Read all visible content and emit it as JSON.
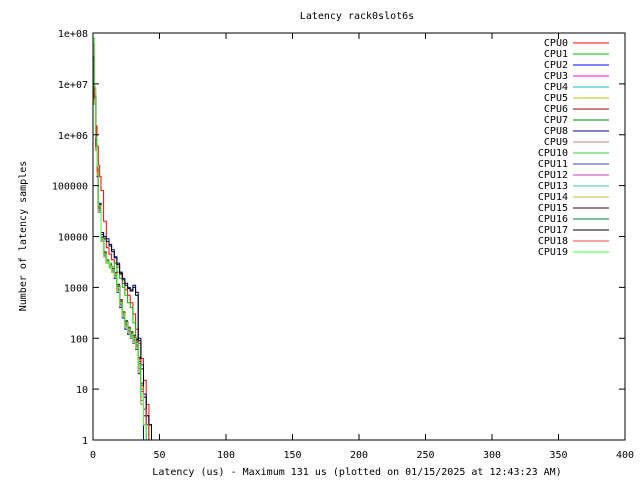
{
  "chart_data": {
    "type": "line",
    "title": "Latency rack0slot6s",
    "xlabel": "Latency (us) - Maximum 131 us (plotted on 01/15/2025 at 12:43:23 AM)",
    "ylabel": "Number of latency samples",
    "xlim": [
      0,
      400
    ],
    "ylim": [
      1,
      100000000
    ],
    "yscale": "log",
    "grid": false,
    "legend_position": "top-right",
    "x_ticks": [
      0,
      50,
      100,
      150,
      200,
      250,
      300,
      350,
      400
    ],
    "x_tick_labels": [
      "0",
      "50",
      "100",
      "150",
      "200",
      "250",
      "300",
      "350",
      "400"
    ],
    "y_ticks": [
      1,
      10,
      100,
      1000,
      10000,
      100000,
      1000000,
      10000000,
      100000000
    ],
    "y_tick_labels": [
      "1",
      "10",
      "100",
      "1000",
      "10000",
      "100000",
      "1e+06",
      "1e+07",
      "1e+08"
    ],
    "series": [
      {
        "name": "CPU0",
        "color": "#ff0000",
        "x": [
          1,
          2,
          3,
          4,
          5,
          6,
          8,
          10,
          12,
          14,
          16,
          18,
          20,
          22,
          24,
          26,
          28,
          30,
          32,
          34,
          36,
          38,
          40,
          42,
          44,
          46
        ],
        "values": [
          60000000,
          8000000,
          1500000,
          600000,
          250000,
          150000,
          80000,
          20000,
          6000,
          4500,
          3500,
          3000,
          2500,
          1800,
          1200,
          900,
          700,
          500,
          300,
          150,
          80,
          40,
          15,
          5,
          2,
          1
        ]
      },
      {
        "name": "CPU1",
        "color": "#00c000",
        "x": [
          1,
          2,
          3,
          4,
          6,
          8,
          10,
          12,
          14,
          16,
          18,
          20,
          22,
          24,
          26,
          28,
          30,
          32,
          34,
          36,
          38,
          40,
          42,
          44
        ],
        "values": [
          30000000,
          5000000,
          600000,
          200000,
          40000,
          10000,
          5000,
          3500,
          3000,
          2500,
          3000,
          2000,
          1500,
          1000,
          700,
          500,
          400,
          200,
          100,
          30,
          10,
          3,
          2,
          1
        ]
      },
      {
        "name": "CPU2",
        "color": "#0000ff",
        "x": [
          1,
          2,
          3,
          4,
          6,
          8,
          10,
          12,
          14,
          16,
          18,
          20,
          22,
          24,
          26,
          28,
          30,
          32,
          34,
          36,
          38,
          40,
          130
        ],
        "values": [
          20000000,
          4000000,
          500000,
          150000,
          30000,
          8000,
          4000,
          3000,
          2500,
          2000,
          1500,
          800,
          400,
          250,
          150,
          120,
          100,
          80,
          60,
          20,
          5,
          1,
          1
        ]
      },
      {
        "name": "CPU3",
        "color": "#ff00ff",
        "x": [
          1,
          2,
          3,
          4,
          6,
          8,
          10,
          12,
          14,
          16,
          18,
          20,
          22,
          24,
          26,
          28,
          30,
          32,
          34,
          36,
          38,
          40,
          44,
          60,
          66,
          70
        ],
        "values": [
          25000000,
          4500000,
          550000,
          180000,
          35000,
          9000,
          4500,
          3200,
          2600,
          2200,
          1800,
          1000,
          500,
          300,
          200,
          150,
          120,
          100,
          80,
          30,
          8,
          2,
          1,
          1,
          1,
          1
        ]
      },
      {
        "name": "CPU4",
        "color": "#00c0c0",
        "x": [
          1,
          2,
          3,
          4,
          6,
          8,
          10,
          12,
          14,
          16,
          18,
          20,
          22,
          24,
          26,
          28,
          30,
          32,
          34,
          36,
          38,
          40,
          50,
          58
        ],
        "values": [
          22000000,
          4200000,
          520000,
          170000,
          32000,
          8500,
          4200,
          3100,
          2500,
          2100,
          1700,
          900,
          450,
          280,
          180,
          140,
          110,
          90,
          70,
          25,
          6,
          2,
          1,
          1
        ]
      },
      {
        "name": "CPU5",
        "color": "#c0c000",
        "x": [
          1,
          2,
          3,
          4,
          6,
          8,
          10,
          12,
          14,
          16,
          18,
          20,
          22,
          24,
          26,
          28,
          30,
          32,
          34,
          36,
          38,
          40,
          48,
          56
        ],
        "values": [
          21000000,
          4100000,
          510000,
          160000,
          31000,
          8200,
          4100,
          3000,
          2400,
          2000,
          1600,
          850,
          430,
          270,
          170,
          130,
          105,
          85,
          65,
          22,
          5,
          2,
          1,
          1
        ]
      },
      {
        "name": "CPU6",
        "color": "#a00000",
        "x": [
          1,
          2,
          3,
          4,
          6,
          8,
          10,
          12,
          14,
          16,
          18,
          20,
          22,
          24,
          26,
          28,
          30,
          32,
          34,
          36,
          38,
          40,
          42,
          44,
          46
        ],
        "values": [
          28000000,
          5200000,
          580000,
          190000,
          38000,
          9500,
          4800,
          3300,
          2700,
          2300,
          1900,
          1100,
          550,
          320,
          210,
          160,
          130,
          110,
          90,
          40,
          12,
          4,
          2,
          1,
          1
        ]
      },
      {
        "name": "CPU7",
        "color": "#008000",
        "x": [
          1,
          2,
          3,
          4,
          6,
          8,
          10,
          12,
          14,
          16,
          18,
          20,
          22,
          24,
          26,
          28,
          30,
          32,
          34,
          36,
          38,
          40,
          42,
          44
        ],
        "values": [
          27000000,
          5100000,
          570000,
          185000,
          37000,
          9300,
          4700,
          3250,
          2650,
          2250,
          1850,
          1050,
          520,
          310,
          200,
          155,
          125,
          105,
          85,
          35,
          10,
          3,
          2,
          1
        ]
      },
      {
        "name": "CPU8",
        "color": "#000080",
        "x": [
          1,
          2,
          3,
          4,
          6,
          8,
          10,
          12,
          14,
          16,
          18,
          20,
          22,
          24,
          26,
          28,
          30,
          32,
          34,
          36,
          38,
          40,
          42,
          44,
          46
        ],
        "values": [
          35000000,
          6000000,
          700000,
          220000,
          45000,
          12000,
          10000,
          9000,
          7000,
          5500,
          4000,
          3000,
          2000,
          1500,
          1200,
          1000,
          900,
          1100,
          800,
          100,
          30,
          8,
          3,
          2,
          1
        ]
      },
      {
        "name": "CPU9",
        "color": "#c08080",
        "x": [
          1,
          2,
          3,
          4,
          6,
          8,
          10,
          12,
          14,
          16,
          18,
          20,
          22,
          24,
          26,
          28,
          30,
          32,
          34,
          36,
          38,
          40,
          42
        ],
        "values": [
          24000000,
          4600000,
          540000,
          175000,
          34000,
          8800,
          4400,
          3150,
          2550,
          2150,
          1750,
          950,
          480,
          290,
          190,
          145,
          115,
          95,
          75,
          28,
          7,
          2,
          1
        ]
      },
      {
        "name": "CPU10",
        "color": "#40c040",
        "x": [
          1,
          2,
          3,
          4,
          6,
          8,
          10,
          12,
          14,
          16,
          18,
          20,
          22,
          24,
          26,
          28,
          30,
          32,
          34,
          36,
          38,
          40,
          42
        ],
        "values": [
          23000000,
          4400000,
          530000,
          172000,
          33000,
          8600,
          4300,
          3120,
          2520,
          2120,
          1720,
          920,
          460,
          285,
          185,
          142,
          112,
          92,
          72,
          26,
          6,
          2,
          1
        ]
      },
      {
        "name": "CPU11",
        "color": "#4040c0",
        "x": [
          1,
          2,
          3,
          4,
          6,
          8,
          10,
          12,
          14,
          16,
          18,
          20,
          22,
          24,
          26,
          28,
          30,
          32,
          34,
          36,
          38,
          40,
          42
        ],
        "values": [
          26000000,
          4800000,
          560000,
          182000,
          36000,
          9100,
          4600,
          3220,
          2620,
          2220,
          1820,
          1020,
          510,
          305,
          195,
          152,
          122,
          102,
          82,
          32,
          9,
          3,
          1
        ]
      },
      {
        "name": "CPU12",
        "color": "#c040c0",
        "x": [
          1,
          2,
          3,
          4,
          6,
          8,
          10,
          12,
          14,
          16,
          18,
          20,
          22,
          24,
          26,
          28,
          30,
          32,
          34,
          36,
          38,
          40,
          44,
          52
        ],
        "values": [
          22500000,
          4300000,
          525000,
          171000,
          32500,
          8550,
          4250,
          3110,
          2510,
          2110,
          1710,
          910,
          455,
          282,
          182,
          141,
          111,
          91,
          71,
          25,
          6,
          2,
          1,
          1
        ]
      },
      {
        "name": "CPU13",
        "color": "#40c0c0",
        "x": [
          1,
          2,
          3,
          4,
          6,
          8,
          10,
          12,
          14,
          16,
          18,
          20,
          22,
          24,
          26,
          28,
          30,
          32,
          34,
          36,
          38,
          40,
          42
        ],
        "values": [
          21500000,
          4150000,
          515000,
          165000,
          31500,
          8300,
          4150,
          3050,
          2450,
          2050,
          1650,
          870,
          440,
          275,
          175,
          135,
          108,
          88,
          68,
          23,
          5,
          2,
          1
        ]
      },
      {
        "name": "CPU14",
        "color": "#c0c040",
        "x": [
          1,
          2,
          3,
          4,
          6,
          8,
          10,
          12,
          14,
          16,
          18,
          20,
          22,
          24,
          26,
          28,
          30,
          32,
          34,
          36,
          38,
          40,
          42
        ],
        "values": [
          20500000,
          4050000,
          505000,
          158000,
          30500,
          8100,
          4050,
          2980,
          2380,
          1980,
          1580,
          830,
          420,
          265,
          165,
          128,
          102,
          82,
          62,
          21,
          5,
          2,
          1
        ]
      },
      {
        "name": "CPU15",
        "color": "#400000",
        "x": [
          1,
          2,
          3,
          4,
          6,
          8,
          10,
          12,
          14,
          16,
          18,
          20,
          22,
          24,
          26,
          28,
          30,
          32,
          34,
          36,
          38,
          40,
          42,
          44
        ],
        "values": [
          29000000,
          5300000,
          590000,
          195000,
          39000,
          9700,
          4900,
          3350,
          2750,
          2350,
          1950,
          1150,
          570,
          330,
          220,
          165,
          135,
          115,
          95,
          42,
          13,
          4,
          2,
          1
        ]
      },
      {
        "name": "CPU16",
        "color": "#008040",
        "x": [
          1,
          2,
          3,
          4,
          6,
          8,
          10,
          12,
          14,
          16,
          18,
          20,
          22,
          24,
          26,
          28,
          30,
          32,
          34,
          36,
          38,
          40,
          42,
          44
        ],
        "values": [
          28500000,
          5250000,
          585000,
          192000,
          38500,
          9600,
          4850,
          3320,
          2720,
          2320,
          1920,
          1120,
          560,
          325,
          215,
          162,
          132,
          112,
          92,
          40,
          12,
          4,
          2,
          1
        ]
      },
      {
        "name": "CPU17",
        "color": "#000000",
        "x": [
          1,
          2,
          3,
          4,
          6,
          8,
          10,
          12,
          14,
          16,
          18,
          20,
          22,
          24,
          26,
          28,
          30,
          32,
          34,
          36,
          38,
          40,
          42,
          44,
          46
        ],
        "values": [
          32000000,
          5600000,
          650000,
          210000,
          42000,
          11000,
          9000,
          8000,
          6500,
          5000,
          3800,
          2800,
          1900,
          1400,
          1100,
          950,
          850,
          1000,
          700,
          90,
          25,
          7,
          3,
          2,
          1
        ]
      },
      {
        "name": "CPU18",
        "color": "#ff4040",
        "x": [
          1,
          2,
          3,
          4,
          6,
          8,
          10,
          12,
          14,
          16,
          18,
          20,
          22,
          24,
          26,
          28,
          30,
          32,
          34,
          36,
          38,
          40,
          42,
          44
        ],
        "values": [
          27500000,
          5150000,
          575000,
          188000,
          37500,
          9400,
          4750,
          3280,
          2680,
          2280,
          1880,
          1080,
          540,
          315,
          205,
          158,
          128,
          108,
          88,
          38,
          11,
          4,
          2,
          1
        ]
      },
      {
        "name": "CPU19",
        "color": "#40ff40",
        "x": [
          1,
          2,
          3,
          4,
          6,
          8,
          10,
          12,
          14,
          16,
          18,
          20,
          22,
          24,
          26,
          28,
          30,
          32,
          34,
          36,
          38,
          40,
          42
        ],
        "values": [
          80000000,
          9000000,
          900000,
          250000,
          40000,
          9000,
          4500,
          3200,
          2600,
          2200,
          1800,
          1000,
          500,
          300,
          200,
          150,
          120,
          100,
          80,
          30,
          8,
          2,
          1
        ]
      }
    ]
  }
}
